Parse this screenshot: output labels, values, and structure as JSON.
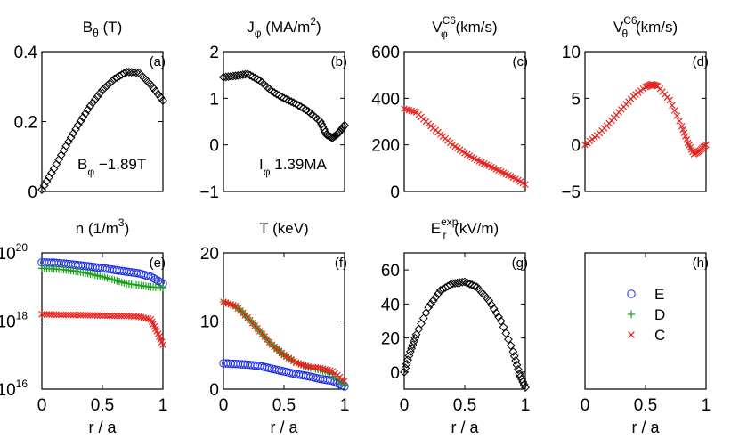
{
  "colors": {
    "E": "#1f2fe6",
    "D": "#18a018",
    "C": "#e6231f",
    "black": "#000000"
  },
  "chart_data": [
    {
      "id": "a",
      "type": "scatter",
      "tag": "(a)",
      "title": {
        "base": "B",
        "sub": "θ",
        "rest": " (T)"
      },
      "ylim": [
        0,
        0.4
      ],
      "yticks": [
        0,
        0.2,
        0.4
      ],
      "yticklabels": [
        "0",
        "0.2",
        "0.4"
      ],
      "xlim": [
        0,
        1
      ],
      "xticks": [],
      "xticklabels": [],
      "xlabel": "",
      "annotation": {
        "base": "B",
        "sub": "φ",
        "rest": " −1.89T"
      },
      "series": [
        {
          "name": "B_theta",
          "marker": "diamond",
          "color": "#000000",
          "x": [
            0,
            0.1,
            0.2,
            0.3,
            0.4,
            0.5,
            0.6,
            0.7,
            0.8,
            0.9,
            1.0
          ],
          "y": [
            0.005,
            0.065,
            0.13,
            0.19,
            0.245,
            0.29,
            0.322,
            0.342,
            0.34,
            0.305,
            0.26
          ]
        }
      ]
    },
    {
      "id": "b",
      "type": "scatter",
      "tag": "(b)",
      "title": {
        "base": "J",
        "sub": "φ",
        "rest": " (MA/m",
        "sup": "2",
        "rest2": ")"
      },
      "ylim": [
        -1,
        2
      ],
      "yticks": [
        -1,
        0,
        1,
        2
      ],
      "yticklabels": [
        "−1",
        "0",
        "1",
        "2"
      ],
      "xlim": [
        0,
        1
      ],
      "xticks": [],
      "xticklabels": [],
      "xlabel": "",
      "annotation": {
        "base": "I",
        "sub": "φ",
        "rest": " 1.39MA"
      },
      "series": [
        {
          "name": "J_phi",
          "marker": "diamond",
          "color": "#000000",
          "x": [
            0,
            0.1,
            0.2,
            0.3,
            0.4,
            0.5,
            0.6,
            0.7,
            0.8,
            0.85,
            0.9,
            0.95,
            1.0
          ],
          "y": [
            1.45,
            1.48,
            1.52,
            1.38,
            1.15,
            1.0,
            0.88,
            0.72,
            0.5,
            0.22,
            0.15,
            0.25,
            0.42
          ]
        }
      ]
    },
    {
      "id": "c",
      "type": "scatter",
      "tag": "(c)",
      "title": {
        "base": "V",
        "sub": "φ",
        "sup": "C6",
        "rest": " (km/s)"
      },
      "ylim": [
        0,
        600
      ],
      "yticks": [
        0,
        200,
        400,
        600
      ],
      "yticklabels": [
        "0",
        "200",
        "400",
        "600"
      ],
      "xlim": [
        0,
        1
      ],
      "xticks": [],
      "xticklabels": [],
      "xlabel": "",
      "series": [
        {
          "name": "V_phi_C6",
          "marker": "x",
          "color": "#e6231f",
          "x": [
            0,
            0.1,
            0.2,
            0.3,
            0.4,
            0.5,
            0.6,
            0.7,
            0.8,
            0.9,
            1.0
          ],
          "y": [
            355,
            340,
            290,
            245,
            200,
            165,
            135,
            110,
            85,
            60,
            30
          ]
        }
      ]
    },
    {
      "id": "d",
      "type": "scatter",
      "tag": "(d)",
      "title": {
        "base": "V",
        "sub": "θ",
        "sup": "C6",
        "rest": " (km/s)"
      },
      "ylim": [
        -5,
        10
      ],
      "yticks": [
        -5,
        0,
        5,
        10
      ],
      "yticklabels": [
        "−5",
        "0",
        "5",
        "10"
      ],
      "xlim": [
        0,
        1
      ],
      "xticks": [],
      "xticklabels": [],
      "xlabel": "",
      "series": [
        {
          "name": "V_theta_C6",
          "marker": "x",
          "color": "#e6231f",
          "x": [
            0,
            0.1,
            0.2,
            0.3,
            0.4,
            0.5,
            0.55,
            0.6,
            0.7,
            0.8,
            0.85,
            0.9,
            0.95,
            1.0
          ],
          "y": [
            0.0,
            1.0,
            2.3,
            3.8,
            5.2,
            6.2,
            6.5,
            6.3,
            4.8,
            2.0,
            0.2,
            -1.0,
            -0.6,
            0.0
          ]
        }
      ]
    },
    {
      "id": "e",
      "type": "scatter",
      "tag": "(e)",
      "yscale": "log",
      "title": {
        "base": "n (1/m",
        "sup": "3",
        "rest": ")"
      },
      "ylim": [
        16,
        20
      ],
      "yticks": [
        16,
        18,
        20
      ],
      "yticklabels": [
        "10",
        "10",
        "10"
      ],
      "ytickexp": [
        "16",
        "18",
        "20"
      ],
      "xlim": [
        0,
        1
      ],
      "xticks": [
        0,
        0.5,
        1
      ],
      "xticklabels": [
        "0",
        "0.5",
        "1"
      ],
      "xlabel": "r / a",
      "series": [
        {
          "name": "E",
          "marker": "circle",
          "color": "#1f2fe6",
          "x": [
            0,
            0.1,
            0.2,
            0.3,
            0.4,
            0.5,
            0.6,
            0.7,
            0.8,
            0.9,
            1.0
          ],
          "y": [
            19.72,
            19.71,
            19.68,
            19.64,
            19.6,
            19.55,
            19.5,
            19.45,
            19.4,
            19.3,
            19.1
          ]
        },
        {
          "name": "D",
          "marker": "plus",
          "color": "#18a018",
          "x": [
            0,
            0.1,
            0.2,
            0.3,
            0.4,
            0.5,
            0.6,
            0.7,
            0.8,
            0.9,
            1.0
          ],
          "y": [
            19.55,
            19.53,
            19.5,
            19.45,
            19.38,
            19.3,
            19.2,
            19.1,
            19.05,
            19.0,
            18.98
          ]
        },
        {
          "name": "C",
          "marker": "x",
          "color": "#e6231f",
          "x": [
            0,
            0.1,
            0.2,
            0.3,
            0.4,
            0.5,
            0.6,
            0.7,
            0.8,
            0.9,
            0.95,
            1.0
          ],
          "y": [
            18.2,
            18.19,
            18.18,
            18.18,
            18.17,
            18.16,
            18.15,
            18.15,
            18.13,
            18.05,
            17.7,
            17.3
          ]
        }
      ]
    },
    {
      "id": "f",
      "type": "scatter",
      "tag": "(f)",
      "title": {
        "base": "T (keV)"
      },
      "ylim": [
        0,
        20
      ],
      "yticks": [
        0,
        10,
        20
      ],
      "yticklabels": [
        "0",
        "10",
        "20"
      ],
      "xlim": [
        0,
        1
      ],
      "xticks": [
        0,
        0.5,
        1
      ],
      "xticklabels": [
        "0",
        "0.5",
        "1"
      ],
      "xlabel": "r / a",
      "series": [
        {
          "name": "E",
          "marker": "circle",
          "color": "#1f2fe6",
          "x": [
            0,
            0.1,
            0.2,
            0.3,
            0.4,
            0.5,
            0.6,
            0.7,
            0.8,
            0.9,
            1.0
          ],
          "y": [
            3.8,
            3.7,
            3.6,
            3.4,
            3.0,
            2.6,
            2.2,
            1.9,
            1.5,
            1.2,
            0.4
          ]
        },
        {
          "name": "D",
          "marker": "plus",
          "color": "#18a018",
          "x": [
            0,
            0.1,
            0.2,
            0.3,
            0.4,
            0.5,
            0.6,
            0.7,
            0.8,
            0.9,
            1.0
          ],
          "y": [
            12.8,
            12.2,
            10.5,
            8.5,
            6.5,
            5.0,
            3.9,
            3.2,
            2.8,
            2.2,
            0.6
          ]
        },
        {
          "name": "C",
          "marker": "x",
          "color": "#e6231f",
          "x": [
            0,
            0.1,
            0.2,
            0.3,
            0.4,
            0.5,
            0.6,
            0.7,
            0.8,
            0.9,
            1.0
          ],
          "y": [
            12.8,
            12.2,
            10.5,
            8.5,
            6.5,
            5.0,
            3.9,
            3.3,
            3.1,
            2.6,
            1.2
          ]
        }
      ]
    },
    {
      "id": "g",
      "type": "scatter",
      "tag": "(g)",
      "title": {
        "base": "E",
        "sub": "r",
        "sup": "exp",
        "rest": " (kV/m)"
      },
      "ylim": [
        -10,
        70
      ],
      "yticks": [
        0,
        20,
        40,
        60
      ],
      "yticklabels": [
        "0",
        "20",
        "40",
        "60"
      ],
      "xlim": [
        0,
        1
      ],
      "xticks": [
        0,
        0.5,
        1
      ],
      "xticklabels": [
        "0",
        "0.5",
        "1"
      ],
      "xlabel": "r / a",
      "series": [
        {
          "name": "Er_exp",
          "marker": "diamond",
          "color": "#000000",
          "x": [
            0,
            0.05,
            0.1,
            0.2,
            0.3,
            0.4,
            0.5,
            0.6,
            0.7,
            0.8,
            0.9,
            0.95,
            1.0
          ],
          "y": [
            0,
            12,
            22,
            38,
            48,
            52,
            53,
            50,
            42,
            30,
            12,
            -1,
            -9
          ]
        }
      ]
    },
    {
      "id": "h",
      "type": "legend",
      "tag": "(h)",
      "title": {
        "base": ""
      },
      "ylim": [
        0,
        1
      ],
      "yticks": [],
      "yticklabels": [],
      "xlim": [
        0,
        1
      ],
      "xticks": [
        0,
        0.5,
        1
      ],
      "xticklabels": [
        "0",
        "0.5",
        "1"
      ],
      "xlabel": "r / a",
      "legend": [
        {
          "label": "E",
          "marker": "circle",
          "color": "#1f2fe6"
        },
        {
          "label": "D",
          "marker": "plus",
          "color": "#18a018"
        },
        {
          "label": "C",
          "marker": "x",
          "color": "#e6231f"
        }
      ]
    }
  ]
}
